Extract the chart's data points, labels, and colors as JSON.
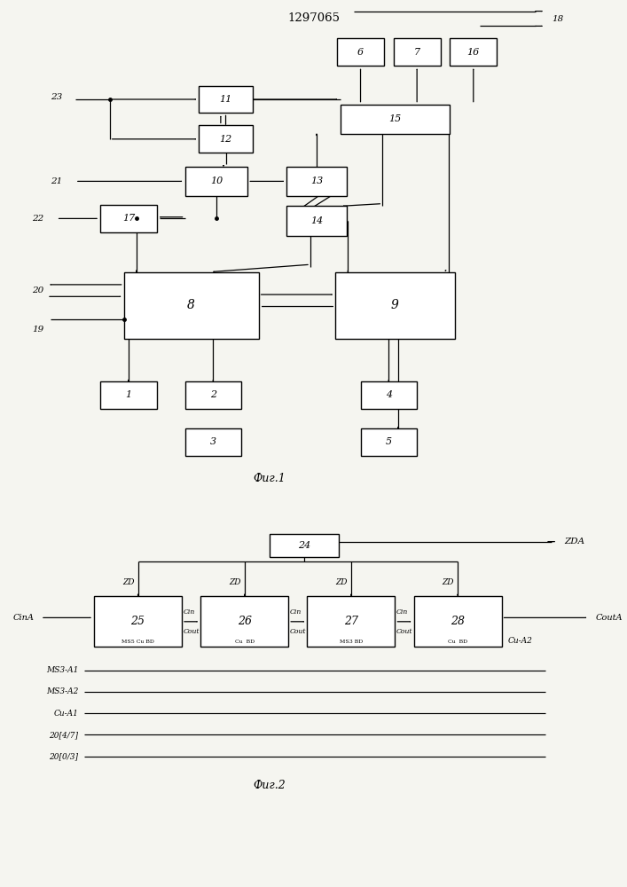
{
  "title": "1297065",
  "bg": "#f5f5f0",
  "fig1_label": "Фиг.1",
  "fig2_label": "Фиг.2",
  "fig1": {
    "blocks": {
      "6": [
        0.575,
        0.895,
        0.075,
        0.055
      ],
      "7": [
        0.665,
        0.895,
        0.075,
        0.055
      ],
      "16": [
        0.755,
        0.895,
        0.075,
        0.055
      ],
      "11": [
        0.36,
        0.8,
        0.085,
        0.055
      ],
      "15": [
        0.63,
        0.76,
        0.175,
        0.06
      ],
      "12": [
        0.36,
        0.72,
        0.085,
        0.055
      ],
      "10": [
        0.345,
        0.635,
        0.1,
        0.06
      ],
      "13": [
        0.505,
        0.635,
        0.095,
        0.06
      ],
      "17": [
        0.205,
        0.56,
        0.09,
        0.055
      ],
      "14": [
        0.505,
        0.555,
        0.095,
        0.06
      ],
      "8": [
        0.305,
        0.385,
        0.215,
        0.135
      ],
      "9": [
        0.63,
        0.385,
        0.19,
        0.135
      ],
      "1": [
        0.205,
        0.205,
        0.09,
        0.055
      ],
      "2": [
        0.34,
        0.205,
        0.09,
        0.055
      ],
      "3": [
        0.34,
        0.11,
        0.09,
        0.055
      ],
      "4": [
        0.62,
        0.205,
        0.09,
        0.055
      ],
      "5": [
        0.62,
        0.11,
        0.09,
        0.055
      ]
    }
  },
  "fig2": {
    "blocks": {
      "24": [
        0.485,
        0.875,
        0.11,
        0.06
      ],
      "25": [
        0.22,
        0.68,
        0.14,
        0.13
      ],
      "26": [
        0.39,
        0.68,
        0.14,
        0.13
      ],
      "27": [
        0.56,
        0.68,
        0.14,
        0.13
      ],
      "28": [
        0.73,
        0.68,
        0.14,
        0.13
      ]
    }
  }
}
